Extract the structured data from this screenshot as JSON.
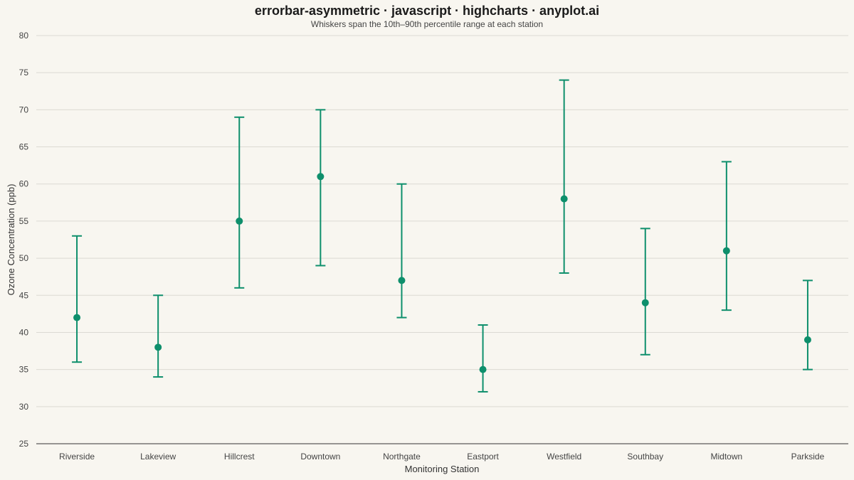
{
  "colors": {
    "background": "#F8F6F0",
    "series": "#0E8F6C",
    "grid": "#dcdad3"
  },
  "chart_data": {
    "type": "errorbar",
    "title": "errorbar-asymmetric · javascript · highcharts · anyplot.ai",
    "subtitle": "Whiskers span the 10th–90th percentile range at each station",
    "xlabel": "Monitoring Station",
    "ylabel": "Ozone Concentration (ppb)",
    "ylim": [
      25,
      80
    ],
    "yticks": [
      25,
      30,
      35,
      40,
      45,
      50,
      55,
      60,
      65,
      70,
      75,
      80
    ],
    "grid": true,
    "legend": "none",
    "categories": [
      "Riverside",
      "Lakeview",
      "Hillcrest",
      "Downtown",
      "Northgate",
      "Eastport",
      "Westfield",
      "Southbay",
      "Midtown",
      "Parkside"
    ],
    "series": [
      {
        "values": [
          42,
          38,
          55,
          61,
          47,
          35,
          58,
          44,
          51,
          39
        ],
        "lower": [
          36,
          34,
          46,
          49,
          42,
          32,
          48,
          37,
          43,
          35
        ],
        "upper": [
          53,
          45,
          69,
          70,
          60,
          41,
          74,
          54,
          63,
          47
        ]
      }
    ]
  }
}
